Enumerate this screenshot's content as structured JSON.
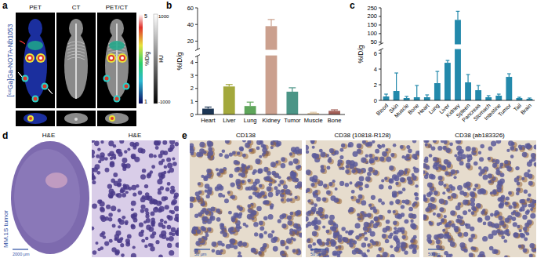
{
  "chart_data": [
    {
      "panel": "b",
      "type": "bar",
      "y_label": "%ID/g",
      "categories": [
        "Heart",
        "Liver",
        "Lung",
        "Kidney",
        "Tumor",
        "Muscle",
        "Bone"
      ],
      "values": [
        0.45,
        2.15,
        0.65,
        38,
        1.75,
        0.12,
        0.28
      ],
      "errors": [
        0.12,
        0.15,
        0.3,
        8,
        0.3,
        0.05,
        0.08
      ],
      "colors": [
        "#1c3553",
        "#a3a83c",
        "#5ea55a",
        "#cba08e",
        "#4b9586",
        "#e0c9a8",
        "#a35f58"
      ],
      "ylim": [
        0,
        60
      ],
      "yticks": [
        0,
        1,
        2,
        3,
        4,
        20,
        40,
        60
      ],
      "axis_break": [
        4.5,
        10
      ]
    },
    {
      "panel": "c",
      "type": "bar",
      "y_label": "%ID/g",
      "categories": [
        "Blood",
        "Skin",
        "Muscle",
        "Bone",
        "Heart",
        "Lung",
        "Liver",
        "Kidney",
        "Spleen",
        "Pancreas",
        "Stomach",
        "Intestine",
        "Tumor",
        "Tail",
        "Brain"
      ],
      "values": [
        0.5,
        1.2,
        0.3,
        0.4,
        0.4,
        2.2,
        4.8,
        180,
        2.3,
        1.3,
        0.4,
        0.6,
        3.0,
        0.3,
        0.2
      ],
      "errors": [
        0.3,
        2.3,
        0.2,
        1.5,
        0.3,
        1.5,
        0.3,
        50,
        1.0,
        0.6,
        0.2,
        0.2,
        0.4,
        0.1,
        0.1
      ],
      "color": "#2389ab",
      "ylim": [
        0,
        250
      ],
      "yticks": [
        0,
        2,
        4,
        6,
        50,
        100,
        150,
        200,
        250
      ],
      "axis_break": [
        6.5,
        40
      ]
    }
  ],
  "panels": {
    "a": {
      "letter": "a",
      "tracer": "[⁶⁸Ga]Ga-NOTA-Nb1053",
      "image_labels": [
        "PET",
        "CT",
        "PET/CT"
      ],
      "pet_scale": {
        "max": 5,
        "min": 1,
        "unit": "%ID/g"
      },
      "ct_scale": {
        "max": 1000,
        "min": -1000,
        "unit": "HU"
      }
    },
    "d": {
      "letter": "d",
      "sample": "MM.1S tumor",
      "image_labels": [
        "H&E",
        "H&E"
      ],
      "scale_bar": "2000 μm"
    },
    "e": {
      "letter": "e",
      "image_labels": [
        "CD138",
        "CD38 (10818-R128)",
        "CD38 (ab183326)"
      ],
      "scale_bar": "50 μm"
    }
  }
}
